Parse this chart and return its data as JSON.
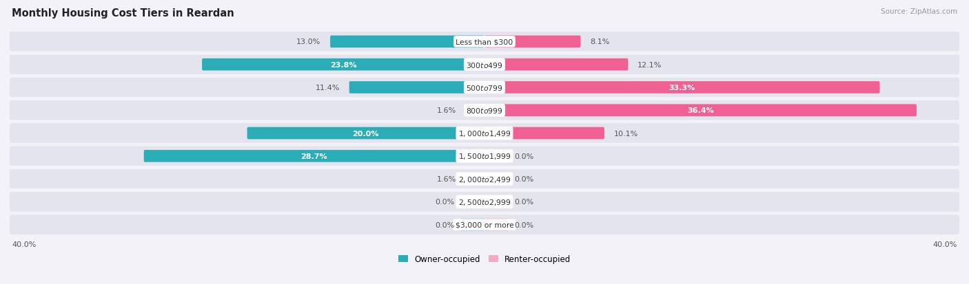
{
  "title": "Monthly Housing Cost Tiers in Reardan",
  "source": "Source: ZipAtlas.com",
  "categories": [
    "Less than $300",
    "$300 to $499",
    "$500 to $799",
    "$800 to $999",
    "$1,000 to $1,499",
    "$1,500 to $1,999",
    "$2,000 to $2,499",
    "$2,500 to $2,999",
    "$3,000 or more"
  ],
  "owner_values": [
    13.0,
    23.8,
    11.4,
    1.6,
    20.0,
    28.7,
    1.6,
    0.0,
    0.0
  ],
  "renter_values": [
    8.1,
    12.1,
    33.3,
    36.4,
    10.1,
    0.0,
    0.0,
    0.0,
    0.0
  ],
  "owner_color_dark": "#2BADB8",
  "owner_color_light": "#7DD0D4",
  "renter_color_dark": "#F06090",
  "renter_color_light": "#F4AABF",
  "row_bg_color": "#E4E4EE",
  "bg_color": "#F2F2F8",
  "xlim": 40.0,
  "legend_owner": "Owner-occupied",
  "legend_renter": "Renter-occupied",
  "stub_size": 2.0,
  "label_threshold": 15.0
}
